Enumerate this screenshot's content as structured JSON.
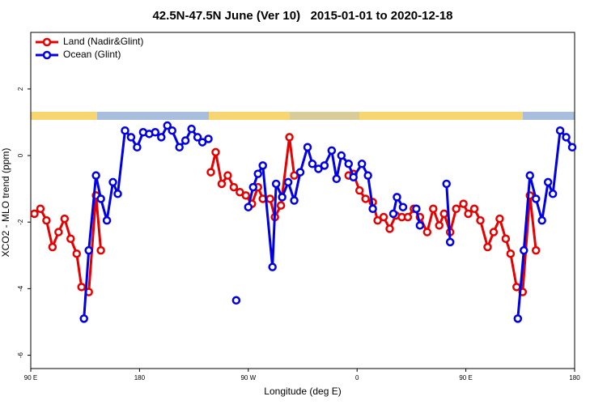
{
  "chart_data": {
    "type": "line",
    "title": "42.5N-47.5N June (Ver 10)   2015-01-01 to 2020-12-18",
    "xlabel": "Longitude (deg E)",
    "ylabel": "XCO2 - MLO trend (ppm)",
    "xlim": [
      90,
      540
    ],
    "ylim": [
      -6.4,
      3.7
    ],
    "xticks": [
      {
        "value": 90,
        "label": "90 E"
      },
      {
        "value": 180,
        "label": "180"
      },
      {
        "value": 270,
        "label": "90 W"
      },
      {
        "value": 360,
        "label": "0"
      },
      {
        "value": 450,
        "label": "90 E"
      },
      {
        "value": 540,
        "label": "180"
      }
    ],
    "yticks": [
      -6,
      -4,
      -2,
      0,
      2
    ],
    "legend": "top-left",
    "series": [
      {
        "name": "Land (Nadir&Glint)",
        "color": "#e60000",
        "x": [
          93,
          98,
          103,
          108,
          113,
          118,
          123,
          128,
          132,
          138,
          144,
          148,
          200,
          239,
          243,
          248,
          253,
          258,
          263,
          268,
          273,
          278,
          282,
          288,
          292,
          297,
          304,
          308,
          330,
          353,
          357,
          362,
          367,
          373,
          377,
          382,
          387,
          392,
          397,
          402,
          407,
          412,
          418,
          423,
          428,
          432,
          437,
          442,
          448,
          452,
          457,
          462,
          468,
          473,
          478,
          483,
          487,
          492,
          497,
          503,
          508
        ],
        "values": [
          -1.75,
          -1.6,
          -1.95,
          -2.75,
          -2.3,
          -1.9,
          -2.5,
          -2.95,
          -3.95,
          -4.1,
          -1.2,
          -2.85,
          null,
          -0.5,
          0.1,
          -0.85,
          -0.6,
          -0.95,
          -1.1,
          -1.2,
          -1.45,
          -0.95,
          -1.3,
          -1.3,
          -1.85,
          -1.5,
          0.55,
          -0.6,
          null,
          -0.6,
          -0.55,
          -1.05,
          -1.3,
          -1.4,
          -1.95,
          -1.85,
          -2.2,
          -1.8,
          -1.85,
          -1.85,
          -1.6,
          -1.85,
          -2.3,
          -1.6,
          -2.1,
          -1.75,
          -2.3,
          -1.6,
          -1.45,
          -1.75,
          -1.6,
          -1.95,
          -2.75,
          -2.3,
          -1.9,
          -2.5,
          -2.95,
          -3.95,
          -4.1,
          -1.2,
          -2.85
        ]
      },
      {
        "name": "Ocean (Glint)",
        "color": "#0000e6",
        "x": [
          134,
          138,
          144,
          148,
          153,
          158,
          162,
          168,
          173,
          178,
          183,
          188,
          193,
          198,
          203,
          207,
          213,
          218,
          223,
          228,
          232,
          237,
          250,
          260,
          265,
          270,
          274,
          278,
          282,
          290,
          293,
          298,
          303,
          308,
          313,
          319,
          323,
          328,
          333,
          339,
          343,
          347,
          353,
          357,
          364,
          369,
          373,
          380,
          390,
          393,
          398,
          403,
          409,
          412,
          420,
          434,
          437,
          480,
          493,
          498,
          503,
          508,
          513,
          518,
          522,
          528,
          533,
          538
        ],
        "values": [
          -4.9,
          -2.85,
          -0.6,
          -1.3,
          -1.95,
          -0.8,
          -1.15,
          0.75,
          0.55,
          0.25,
          0.7,
          0.65,
          0.7,
          0.55,
          0.9,
          0.75,
          0.25,
          0.45,
          0.8,
          0.55,
          0.4,
          0.5,
          null,
          -4.35,
          null,
          -1.55,
          -0.95,
          -0.55,
          -0.3,
          -3.35,
          -0.85,
          -1.25,
          -0.8,
          -1.35,
          -0.5,
          0.25,
          -0.25,
          -0.4,
          -0.3,
          0.15,
          -0.7,
          0,
          -0.25,
          -0.65,
          -0.25,
          -0.6,
          -1.6,
          null,
          -1.75,
          -1.25,
          -1.55,
          null,
          -1.6,
          -2.1,
          null,
          -0.85,
          -2.6,
          null,
          -4.9,
          -2.85,
          -0.6,
          -1.3,
          -1.95,
          -0.8,
          -1.15,
          0.75,
          0.55,
          0.25
        ]
      }
    ]
  }
}
